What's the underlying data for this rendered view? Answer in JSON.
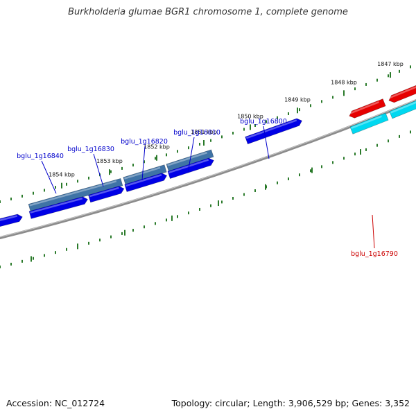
{
  "title": "Burkholderia glumae BGR1 chromosome 1, complete genome",
  "footer": {
    "accession": "Accession: NC_012724",
    "summary": "Topology: circular; Length: 3,906,529 bp; Genes: 3,352"
  },
  "colors": {
    "backbone": "#8c8c8c",
    "tick": "#2a7a2a",
    "forward_cds": "#0000e6",
    "forward_gene": "#3f73a6",
    "reverse_cds": "#e60000",
    "reverse_gene": "#00d8f0",
    "label_forward": "#0000cc",
    "label_reverse": "#cc0000"
  },
  "scale_labels": [
    "1847 kbp",
    "1848 kbp",
    "1849 kbp",
    "1850 kbp",
    "1851 kbp",
    "1852 kbp",
    "1853 kbp",
    "1854 kbp"
  ],
  "gene_labels": [
    {
      "name": "bglu_1g16790",
      "strand": "reverse"
    },
    {
      "name": "bglu_1g16800",
      "strand": "forward"
    },
    {
      "name": "bglu_1g16810",
      "strand": "forward"
    },
    {
      "name": "bglu_1g16820",
      "strand": "forward"
    },
    {
      "name": "bglu_1g16830",
      "strand": "forward"
    },
    {
      "name": "bglu_1g16840",
      "strand": "forward"
    }
  ]
}
